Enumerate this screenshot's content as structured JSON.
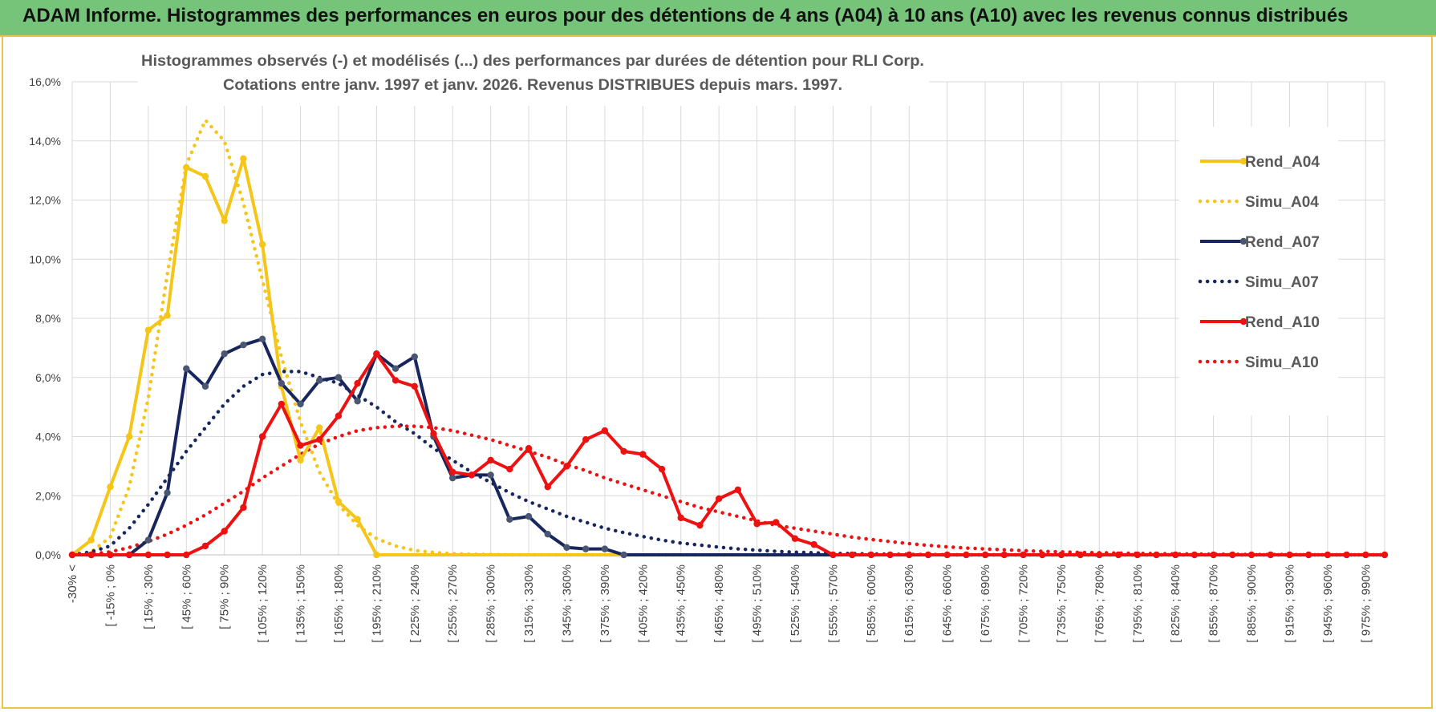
{
  "banner": {
    "title": "ADAM Informe. Histogrammes des performances en euros pour des détentions de 4 ans (A04) à 10 ans (A10) avec les revenus connus distribués"
  },
  "chart_data": {
    "type": "line",
    "title": "Histogrammes observés (-) et modélisés (...) des performances par durées de détention pour RLI Corp.",
    "subtitle": "Cotations entre janv. 1997 et janv. 2026. Revenus DISTRIBUES depuis mars. 1997.",
    "ylim": [
      0,
      16
    ],
    "yticks": [
      "0,0%",
      "2,0%",
      "4,0%",
      "6,0%",
      "8,0%",
      "10,0%",
      "12,0%",
      "14,0%",
      "16,0%"
    ],
    "ytick_values": [
      0,
      2,
      4,
      6,
      8,
      10,
      12,
      14,
      16
    ],
    "category_labels": [
      "-30% <",
      "[ -15% ; 0%",
      "[ 15% ; 30%",
      "[ 45% ; 60%",
      "[ 75% ; 90%",
      "[ 105% ; 120%",
      "[ 135% ; 150%",
      "[ 165% ; 180%",
      "[ 195% ; 210%",
      "[ 225% ; 240%",
      "[ 255% ; 270%",
      "[ 285% ; 300%",
      "[ 315% ; 330%",
      "[ 345% ; 360%",
      "[ 375% ; 390%",
      "[ 405% ; 420%",
      "[ 435% ; 450%",
      "[ 465% ; 480%",
      "[ 495% ; 510%",
      "[ 525% ; 540%",
      "[ 555% ; 570%",
      "[ 585% ; 600%",
      "[ 615% ; 630%",
      "[ 645% ; 660%",
      "[ 675% ; 690%",
      "[ 705% ; 720%",
      "[ 735% ; 750%",
      "[ 765% ; 780%",
      "[ 795% ; 810%",
      "[ 825% ; 840%",
      "[ 855% ; 870%",
      "[ 885% ; 900%",
      "[ 915% ; 930%",
      "[ 945% ; 960%",
      "[ 975% ; 990%"
    ],
    "n_points": 70,
    "legend_position": "right",
    "series": [
      {
        "name": "Rend_A04",
        "style": "solid",
        "color": "#f5c518",
        "values": [
          0,
          0.5,
          2.3,
          4.0,
          7.6,
          8.1,
          13.1,
          12.8,
          11.3,
          13.4,
          10.5,
          5.7,
          3.2,
          4.3,
          1.8,
          1.2,
          0,
          0,
          0,
          0,
          0,
          0,
          0,
          0,
          0,
          0,
          0,
          0,
          0,
          0,
          0,
          0,
          0,
          0,
          0,
          0,
          0,
          0,
          0,
          0,
          0,
          0,
          0,
          0,
          0,
          0,
          0,
          0,
          0,
          0,
          0,
          0,
          0,
          0,
          0,
          0,
          0,
          0,
          0,
          0,
          0,
          0,
          0,
          0,
          0,
          0,
          0,
          0,
          0,
          0
        ]
      },
      {
        "name": "Simu_A04",
        "style": "dotted",
        "color": "#f5c518",
        "values": [
          0,
          0.1,
          0.6,
          2.3,
          5.3,
          9.5,
          13.2,
          14.7,
          14.0,
          11.9,
          9.3,
          6.7,
          4.5,
          2.8,
          1.7,
          1.0,
          0.55,
          0.3,
          0.15,
          0.08,
          0.04,
          0.02,
          0.01,
          0,
          0,
          0,
          0,
          0,
          0,
          0,
          0,
          0,
          0,
          0,
          0,
          0,
          0,
          0,
          0,
          0,
          0,
          0,
          0,
          0,
          0,
          0,
          0,
          0,
          0,
          0,
          0,
          0,
          0,
          0,
          0,
          0,
          0,
          0,
          0,
          0,
          0,
          0,
          0,
          0,
          0,
          0,
          0,
          0,
          0,
          0
        ]
      },
      {
        "name": "Rend_A07",
        "style": "solid",
        "color": "#17275e",
        "values": [
          0,
          0,
          0,
          0,
          0.5,
          2.1,
          6.3,
          5.7,
          6.8,
          7.1,
          7.3,
          5.8,
          5.1,
          5.9,
          6.0,
          5.2,
          6.8,
          6.3,
          6.7,
          4.0,
          2.6,
          2.7,
          2.7,
          1.2,
          1.3,
          0.7,
          0.25,
          0.2,
          0.2,
          0,
          0,
          0,
          0,
          0,
          0,
          0,
          0,
          0,
          0,
          0,
          0,
          0,
          0,
          0,
          0,
          0,
          0,
          0,
          0,
          0,
          0,
          0,
          0,
          0,
          0,
          0,
          0,
          0,
          0,
          0,
          0,
          0,
          0,
          0,
          0,
          0,
          0,
          0,
          0,
          0
        ]
      },
      {
        "name": "Simu_A07",
        "style": "dotted",
        "color": "#17275e",
        "values": [
          0,
          0.1,
          0.3,
          0.9,
          1.7,
          2.6,
          3.5,
          4.3,
          5.1,
          5.7,
          6.1,
          6.2,
          6.2,
          6.0,
          5.8,
          5.4,
          5.0,
          4.5,
          4.1,
          3.6,
          3.2,
          2.8,
          2.45,
          2.1,
          1.8,
          1.55,
          1.3,
          1.1,
          0.9,
          0.75,
          0.62,
          0.5,
          0.4,
          0.33,
          0.26,
          0.2,
          0.16,
          0.12,
          0.09,
          0.07,
          0.05,
          0.04,
          0.03,
          0.02,
          0.01,
          0.01,
          0,
          0,
          0,
          0,
          0,
          0,
          0,
          0,
          0,
          0,
          0,
          0,
          0,
          0,
          0,
          0,
          0,
          0,
          0,
          0,
          0,
          0,
          0,
          0
        ]
      },
      {
        "name": "Rend_A10",
        "style": "solid",
        "color": "#ee1111",
        "values": [
          0,
          0,
          0,
          0,
          0,
          0,
          0,
          0.3,
          0.8,
          1.6,
          4.0,
          5.1,
          3.7,
          3.9,
          4.7,
          5.8,
          6.8,
          5.9,
          5.7,
          4.1,
          2.8,
          2.7,
          3.2,
          2.9,
          3.6,
          2.3,
          3.0,
          3.9,
          4.2,
          3.5,
          3.4,
          2.9,
          1.25,
          1.0,
          1.9,
          2.2,
          1.05,
          1.1,
          0.55,
          0.35,
          0,
          0,
          0,
          0,
          0,
          0,
          0,
          0,
          0,
          0,
          0,
          0,
          0,
          0,
          0,
          0,
          0,
          0,
          0,
          0,
          0,
          0,
          0,
          0,
          0,
          0,
          0,
          0,
          0,
          0
        ]
      },
      {
        "name": "Simu_A10",
        "style": "dotted",
        "color": "#ee1111",
        "values": [
          0,
          0.03,
          0.1,
          0.25,
          0.45,
          0.7,
          1.0,
          1.35,
          1.75,
          2.15,
          2.6,
          3.0,
          3.4,
          3.75,
          4.0,
          4.2,
          4.3,
          4.35,
          4.35,
          4.3,
          4.2,
          4.05,
          3.9,
          3.7,
          3.5,
          3.3,
          3.05,
          2.85,
          2.6,
          2.4,
          2.2,
          2.0,
          1.8,
          1.6,
          1.45,
          1.3,
          1.15,
          1.0,
          0.9,
          0.8,
          0.7,
          0.6,
          0.52,
          0.45,
          0.38,
          0.32,
          0.27,
          0.23,
          0.2,
          0.17,
          0.14,
          0.12,
          0.1,
          0.08,
          0.07,
          0.06,
          0.05,
          0.04,
          0.03,
          0.03,
          0.02,
          0.02,
          0.01,
          0.01,
          0.01,
          0,
          0,
          0,
          0,
          0
        ]
      }
    ]
  }
}
